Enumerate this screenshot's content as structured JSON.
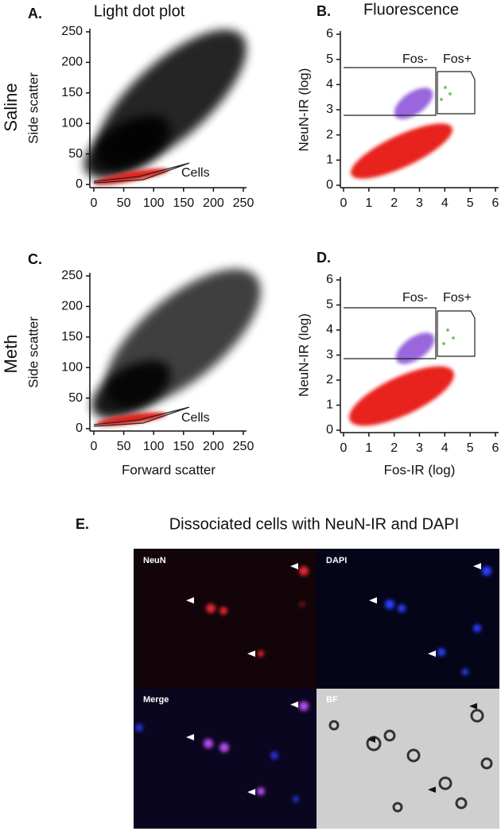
{
  "panels": [
    {
      "letter": "A.",
      "title": "Light dot plot",
      "row_label": "Saline",
      "y_label": "Side scatter",
      "gate_label": "Cells",
      "x_ticks": [
        0,
        50,
        100,
        150,
        200,
        250
      ],
      "y_ticks": [
        0,
        50,
        100,
        150,
        200,
        250
      ]
    },
    {
      "letter": "B.",
      "title": "Fluorescence",
      "y_label": "NeuN-IR (log)",
      "gate_labels": [
        "Fos-",
        "Fos+"
      ],
      "x_ticks": [
        0,
        1,
        2,
        3,
        4,
        5,
        6
      ],
      "y_ticks": [
        0,
        1,
        2,
        3,
        4,
        5,
        6
      ]
    },
    {
      "letter": "C.",
      "row_label": "Meth",
      "y_label": "Side scatter",
      "x_label": "Forward scatter",
      "gate_label": "Cells",
      "x_ticks": [
        0,
        50,
        100,
        150,
        200,
        250
      ],
      "y_ticks": [
        0,
        50,
        100,
        150,
        200,
        250
      ]
    },
    {
      "letter": "D.",
      "y_label": "NeuN-IR (log)",
      "x_label": "Fos-IR (log)",
      "gate_labels": [
        "Fos-",
        "Fos+"
      ],
      "x_ticks": [
        0,
        1,
        2,
        3,
        4,
        5,
        6
      ],
      "y_ticks": [
        0,
        1,
        2,
        3,
        4,
        5,
        6
      ]
    }
  ],
  "micrograph": {
    "letter": "E.",
    "title": "Dissociated cells with NeuN-IR and DAPI",
    "quadrants": [
      "NeuN",
      "DAPI",
      "Merge",
      "BF"
    ]
  }
}
